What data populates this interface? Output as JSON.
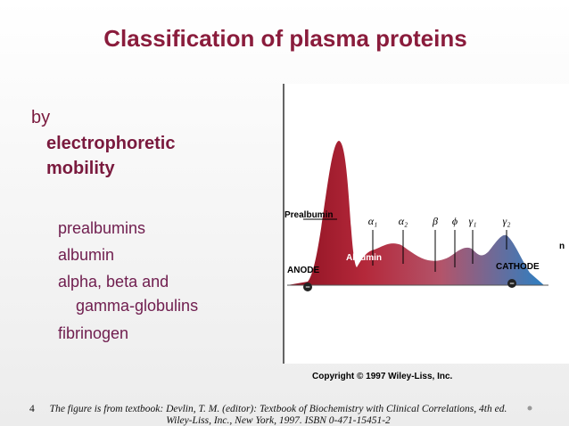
{
  "title": "Classification of plasma proteins",
  "intro": {
    "lead": "by",
    "emphasis_1": "electrophoretic",
    "emphasis_2": "mobility"
  },
  "bullets": [
    "prealbumins",
    "albumin",
    "alpha, beta and",
    "gamma-globulins",
    "fibrinogen"
  ],
  "figure": {
    "labels": {
      "prealbumin": "Prealbumin",
      "albumin": "Albumin",
      "anode": "ANODE",
      "cathode": "CATHODE",
      "anode_sign": "−",
      "cathode_sign": "−"
    },
    "fractions": [
      "α₁",
      "α₂",
      "β",
      "ϕ",
      "γ₁",
      "γ₂"
    ],
    "side_mark": "n",
    "copyright": "Copyright © 1997 Wiley-Liss, Inc."
  },
  "footnote": {
    "slide_number": "4",
    "line_1": "The figure is from textbook: Devlin, T. M. (editor): Textbook of Biochemistry with Clinical Correlations, 4th ed.",
    "line_2": "Wiley-Liss, Inc., New York, 1997. ISBN 0-471-15451-2"
  }
}
